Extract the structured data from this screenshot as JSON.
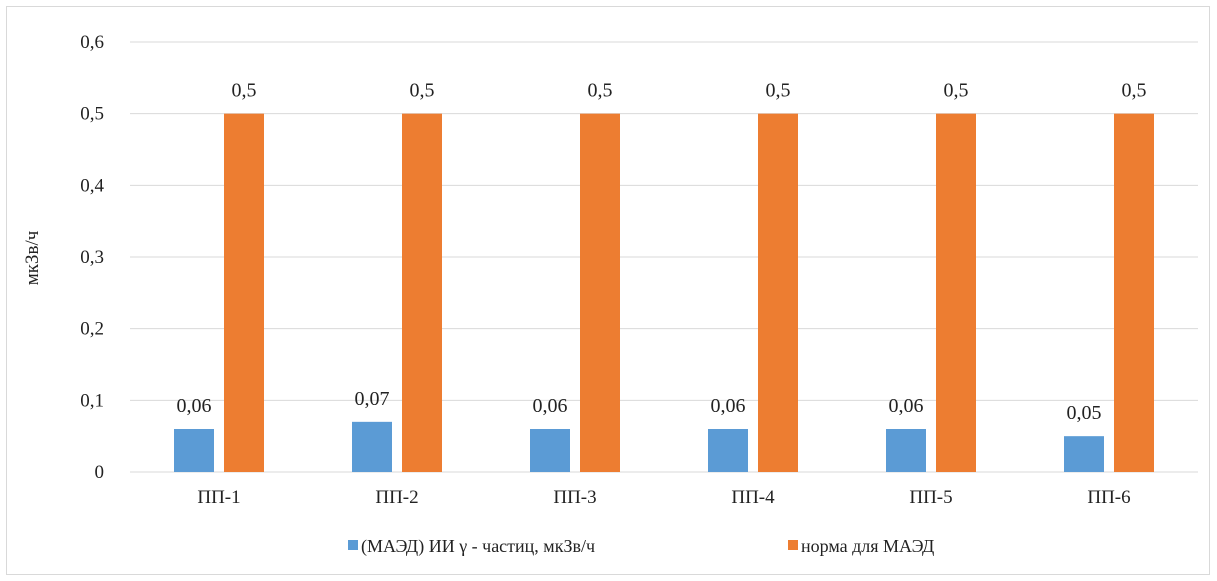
{
  "chart_data": {
    "type": "bar",
    "title": "",
    "xlabel": "",
    "ylabel": "мкЗв/ч",
    "ylim": [
      0,
      0.6
    ],
    "y_ticks": [
      "0",
      "0,1",
      "0,2",
      "0,3",
      "0,4",
      "0,5",
      "0,6"
    ],
    "y_tick_values": [
      0,
      0.1,
      0.2,
      0.3,
      0.4,
      0.5,
      0.6
    ],
    "grid": true,
    "legend_position": "bottom",
    "categories": [
      "ПП-1",
      "ПП-2",
      "ПП-3",
      "ПП-4",
      "ПП-5",
      "ПП-6"
    ],
    "series": [
      {
        "name": "(МАЭД) ИИ γ - частиц, мкЗв/ч",
        "values": [
          0.06,
          0.07,
          0.06,
          0.06,
          0.06,
          0.05
        ],
        "labels": [
          "0,06",
          "0,07",
          "0,06",
          "0,06",
          "0,06",
          "0,05"
        ],
        "color": "#5b9bd5"
      },
      {
        "name": "норма для МАЭД",
        "values": [
          0.5,
          0.5,
          0.5,
          0.5,
          0.5,
          0.5
        ],
        "labels": [
          "0,5",
          "0,5",
          "0,5",
          "0,5",
          "0,5",
          "0,5"
        ],
        "color": "#ed7d31"
      }
    ]
  },
  "colors": {
    "grid": "#d9d9d9",
    "text": "#222222"
  }
}
